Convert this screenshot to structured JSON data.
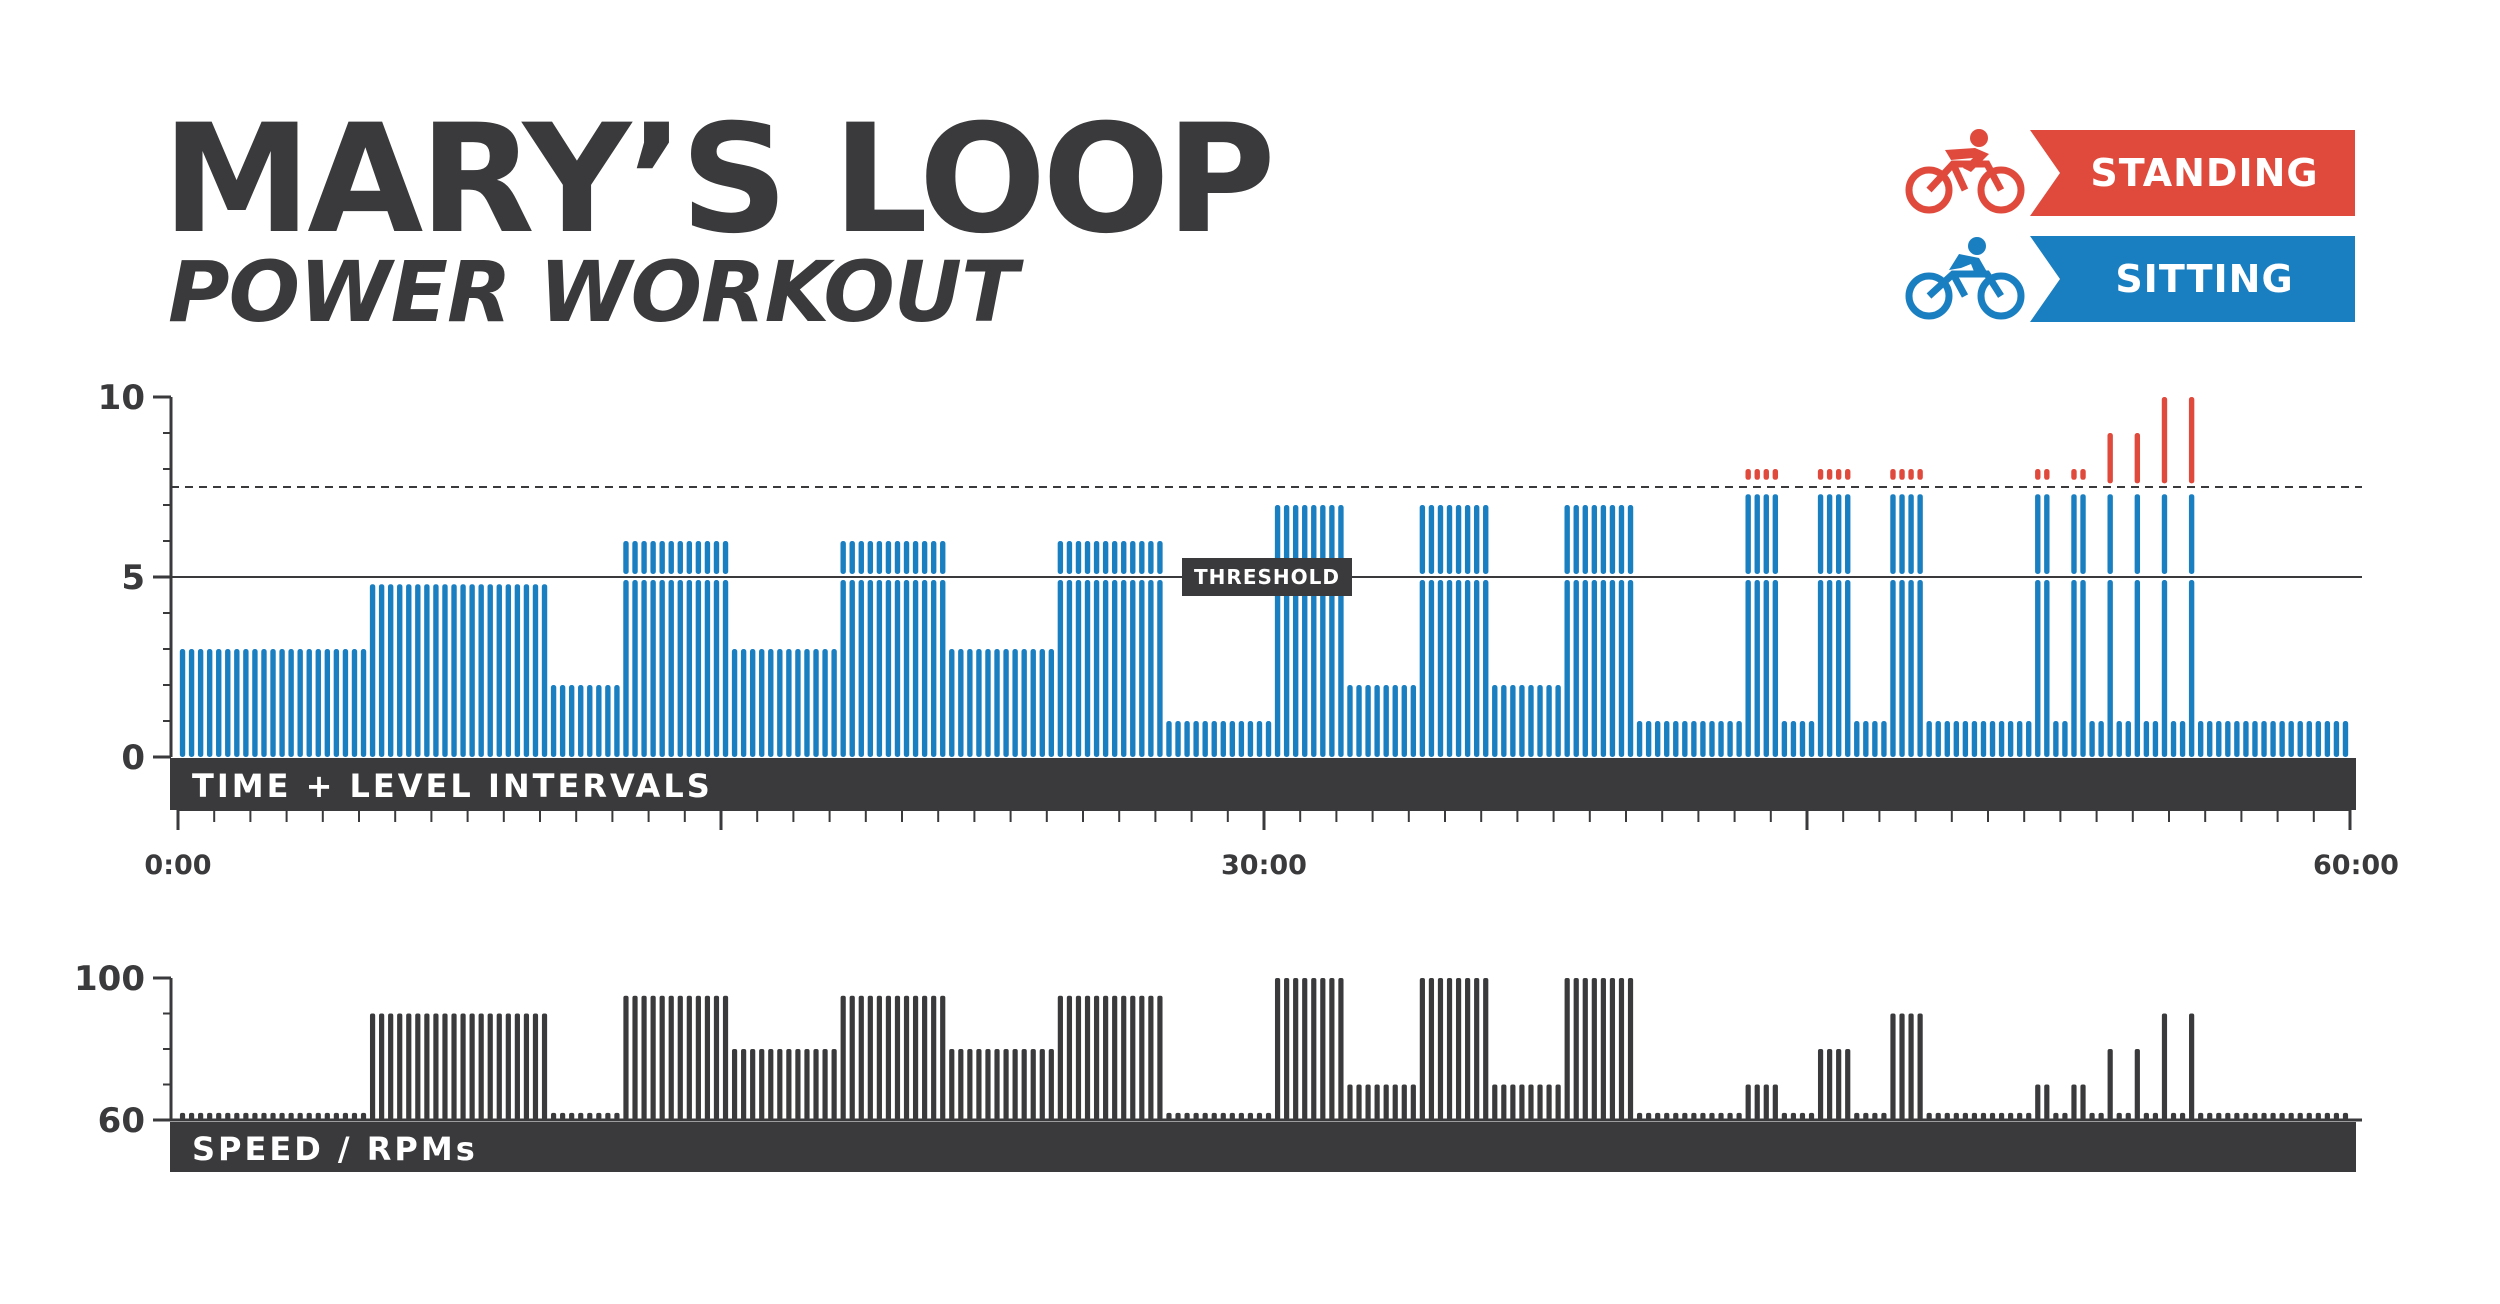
{
  "title": "MARY’S LOOP",
  "subtitle": "POWER WORKOUT",
  "legend": {
    "standing": {
      "label": "STANDING",
      "color": "#e04a3c",
      "icon": "standing-cyclist-icon"
    },
    "sitting": {
      "label": "SITTING",
      "color": "#1a7fc1",
      "icon": "sitting-cyclist-icon"
    }
  },
  "colors": {
    "sitting": "#1a7fc1",
    "standing": "#e04a3c",
    "dark": "#3a3a3c"
  },
  "chart_data": [
    {
      "type": "bar",
      "band_label": "TIME + LEVEL INTERVALS",
      "threshold_label": "THRESHOLD",
      "threshold": 5,
      "dashed_line": 7.5,
      "ylim": [
        0,
        10
      ],
      "y_ticks": [
        "0",
        "5",
        "10"
      ],
      "xlim": [
        0,
        60
      ],
      "x_tick_labels": [
        "0:00",
        "30:00",
        "60:00"
      ],
      "grid": false,
      "legend_position": "top-right",
      "segments": [
        {
          "start": 0,
          "end": 5.25,
          "level": 3,
          "position": "sitting"
        },
        {
          "start": 5.25,
          "end": 10.25,
          "level": 4.8,
          "position": "sitting"
        },
        {
          "start": 10.25,
          "end": 12.25,
          "level": 2,
          "position": "sitting"
        },
        {
          "start": 12.25,
          "end": 15.25,
          "level": 6,
          "position": "sitting"
        },
        {
          "start": 15.25,
          "end": 18.25,
          "level": 3,
          "position": "sitting"
        },
        {
          "start": 18.25,
          "end": 21.25,
          "level": 6,
          "position": "sitting"
        },
        {
          "start": 21.25,
          "end": 24.25,
          "level": 3,
          "position": "sitting"
        },
        {
          "start": 24.25,
          "end": 27.25,
          "level": 6,
          "position": "sitting"
        },
        {
          "start": 27.25,
          "end": 30.25,
          "level": 1,
          "position": "sitting"
        },
        {
          "start": 30.25,
          "end": 32.25,
          "level": 7,
          "position": "sitting"
        },
        {
          "start": 32.25,
          "end": 34.25,
          "level": 2,
          "position": "sitting"
        },
        {
          "start": 34.25,
          "end": 36.25,
          "level": 7,
          "position": "sitting"
        },
        {
          "start": 36.25,
          "end": 38.25,
          "level": 2,
          "position": "sitting"
        },
        {
          "start": 38.25,
          "end": 40.25,
          "level": 7,
          "position": "sitting"
        },
        {
          "start": 40.25,
          "end": 43.25,
          "level": 1,
          "position": "sitting"
        },
        {
          "start": 43.25,
          "end": 44.25,
          "level": 7.3,
          "standing_level": 8,
          "position": "both"
        },
        {
          "start": 44.25,
          "end": 45.25,
          "level": 1,
          "position": "sitting"
        },
        {
          "start": 45.25,
          "end": 46.25,
          "level": 7.3,
          "standing_level": 8,
          "position": "both"
        },
        {
          "start": 46.25,
          "end": 47.25,
          "level": 1,
          "position": "sitting"
        },
        {
          "start": 47.25,
          "end": 48.25,
          "level": 7.3,
          "standing_level": 8,
          "position": "both"
        },
        {
          "start": 48.25,
          "end": 51.25,
          "level": 1,
          "position": "sitting"
        },
        {
          "start": 51.25,
          "end": 51.75,
          "level": 7.3,
          "standing_level": 8,
          "position": "both"
        },
        {
          "start": 51.75,
          "end": 52.25,
          "level": 1,
          "position": "sitting"
        },
        {
          "start": 52.25,
          "end": 52.75,
          "level": 7.3,
          "standing_level": 8,
          "position": "both"
        },
        {
          "start": 52.75,
          "end": 53.25,
          "level": 1,
          "position": "sitting"
        },
        {
          "start": 53.25,
          "end": 53.5,
          "level": 7.3,
          "standing_level": 9,
          "position": "both"
        },
        {
          "start": 53.5,
          "end": 54.0,
          "level": 1,
          "position": "sitting"
        },
        {
          "start": 54.0,
          "end": 54.25,
          "level": 7.3,
          "standing_level": 9,
          "position": "both"
        },
        {
          "start": 54.25,
          "end": 54.75,
          "level": 1,
          "position": "sitting"
        },
        {
          "start": 54.75,
          "end": 55.0,
          "level": 7.3,
          "standing_level": 10,
          "position": "both"
        },
        {
          "start": 55.0,
          "end": 55.5,
          "level": 1,
          "position": "sitting"
        },
        {
          "start": 55.5,
          "end": 55.75,
          "level": 7.3,
          "standing_level": 10,
          "position": "both"
        },
        {
          "start": 55.75,
          "end": 60,
          "level": 1,
          "position": "sitting"
        }
      ]
    },
    {
      "type": "bar",
      "band_label": "SPEED / RPMs",
      "ylim": [
        60,
        100
      ],
      "y_ticks": [
        "60",
        "100"
      ],
      "xlim": [
        0,
        60
      ],
      "grid": false,
      "segments": [
        {
          "start": 0,
          "end": 5.25,
          "rpm": 62
        },
        {
          "start": 5.25,
          "end": 10.25,
          "rpm": 90
        },
        {
          "start": 10.25,
          "end": 12.25,
          "rpm": 62
        },
        {
          "start": 12.25,
          "end": 15.25,
          "rpm": 95
        },
        {
          "start": 15.25,
          "end": 18.25,
          "rpm": 80
        },
        {
          "start": 18.25,
          "end": 21.25,
          "rpm": 95
        },
        {
          "start": 21.25,
          "end": 24.25,
          "rpm": 80
        },
        {
          "start": 24.25,
          "end": 27.25,
          "rpm": 95
        },
        {
          "start": 27.25,
          "end": 30.25,
          "rpm": 62
        },
        {
          "start": 30.25,
          "end": 32.25,
          "rpm": 100
        },
        {
          "start": 32.25,
          "end": 34.25,
          "rpm": 70
        },
        {
          "start": 34.25,
          "end": 36.25,
          "rpm": 100
        },
        {
          "start": 36.25,
          "end": 38.25,
          "rpm": 70
        },
        {
          "start": 38.25,
          "end": 40.25,
          "rpm": 100
        },
        {
          "start": 40.25,
          "end": 43.25,
          "rpm": 62
        },
        {
          "start": 43.25,
          "end": 44.25,
          "rpm": 70
        },
        {
          "start": 44.25,
          "end": 45.25,
          "rpm": 62
        },
        {
          "start": 45.25,
          "end": 46.25,
          "rpm": 80
        },
        {
          "start": 46.25,
          "end": 47.25,
          "rpm": 62
        },
        {
          "start": 47.25,
          "end": 48.25,
          "rpm": 90
        },
        {
          "start": 48.25,
          "end": 51.25,
          "rpm": 62
        },
        {
          "start": 51.25,
          "end": 51.75,
          "rpm": 70
        },
        {
          "start": 51.75,
          "end": 52.25,
          "rpm": 62
        },
        {
          "start": 52.25,
          "end": 52.75,
          "rpm": 70
        },
        {
          "start": 52.75,
          "end": 53.25,
          "rpm": 62
        },
        {
          "start": 53.25,
          "end": 53.5,
          "rpm": 80
        },
        {
          "start": 53.5,
          "end": 54.0,
          "rpm": 62
        },
        {
          "start": 54.0,
          "end": 54.25,
          "rpm": 80
        },
        {
          "start": 54.25,
          "end": 54.75,
          "rpm": 62
        },
        {
          "start": 54.75,
          "end": 55.0,
          "rpm": 90
        },
        {
          "start": 55.0,
          "end": 55.5,
          "rpm": 62
        },
        {
          "start": 55.5,
          "end": 55.75,
          "rpm": 90
        },
        {
          "start": 55.75,
          "end": 60,
          "rpm": 62
        }
      ]
    }
  ]
}
